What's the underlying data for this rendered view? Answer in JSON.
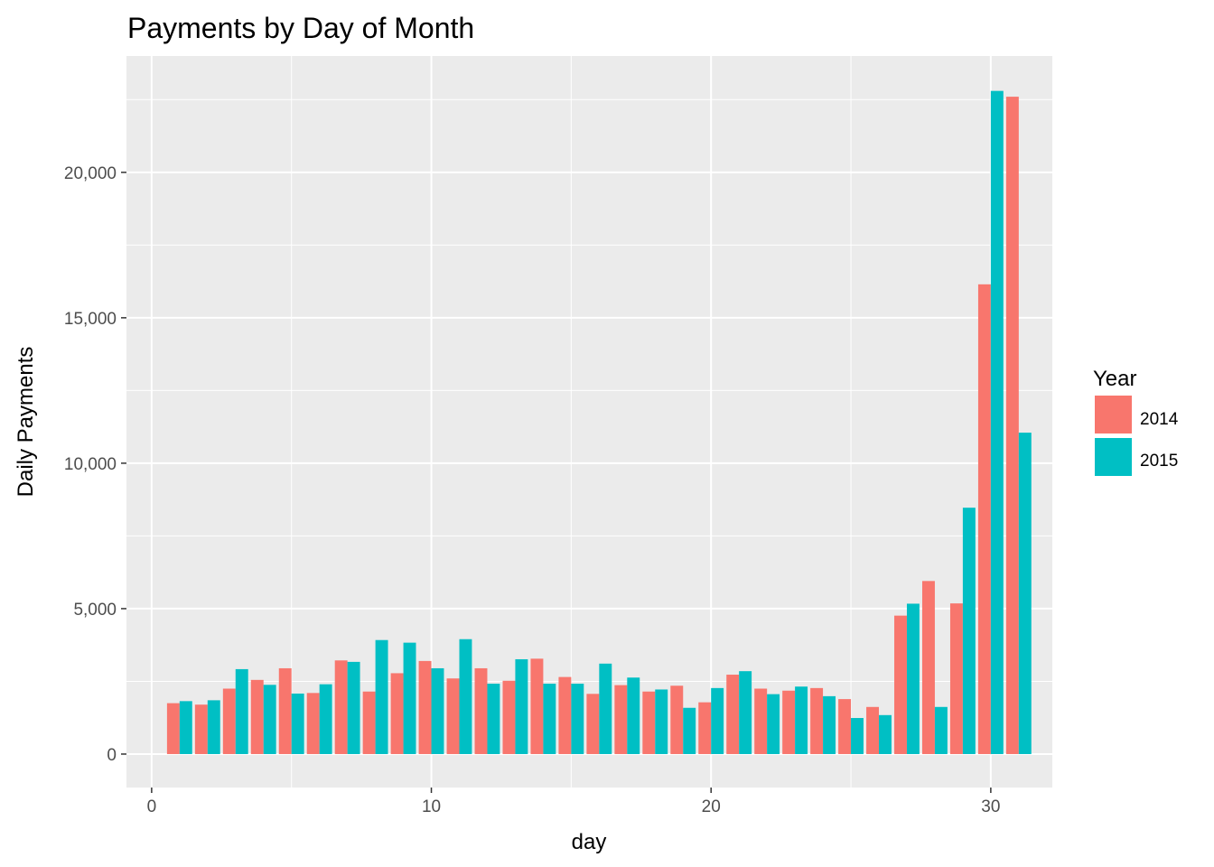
{
  "chart_data": {
    "type": "bar",
    "title": "Payments by Day of Month",
    "xlabel": "day",
    "ylabel": "Daily Payments",
    "x_ticks": [
      "0",
      "10",
      "20",
      "30"
    ],
    "y_ticks": [
      "0",
      "5,000",
      "10,000",
      "15,000",
      "20,000"
    ],
    "xlim": [
      -0.9,
      32.2
    ],
    "ylim": [
      -1150,
      24000
    ],
    "grid": true,
    "legend": {
      "title": "Year",
      "position": "right"
    },
    "categories": [
      1,
      2,
      3,
      4,
      5,
      6,
      7,
      8,
      9,
      10,
      11,
      12,
      13,
      14,
      15,
      16,
      17,
      18,
      19,
      20,
      21,
      22,
      23,
      24,
      25,
      26,
      27,
      28,
      29,
      30,
      31
    ],
    "series": [
      {
        "name": "2014",
        "color": "#F8766D",
        "values": [
          1750,
          1700,
          2250,
          2550,
          2950,
          2100,
          3220,
          2150,
          2780,
          3200,
          2600,
          2950,
          2520,
          3280,
          2650,
          2070,
          2370,
          2150,
          2350,
          1780,
          2730,
          2250,
          2180,
          2270,
          1890,
          1620,
          4760,
          5950,
          5180,
          16150,
          22600
        ]
      },
      {
        "name": "2015",
        "color": "#00BFC4",
        "values": [
          1820,
          1850,
          2920,
          2380,
          2080,
          2400,
          3170,
          3920,
          3830,
          2950,
          3950,
          2420,
          3260,
          2420,
          2420,
          3110,
          2630,
          2220,
          1590,
          2270,
          2850,
          2060,
          2320,
          1990,
          1240,
          1340,
          5170,
          1620,
          8470,
          22800,
          11050
        ]
      }
    ]
  }
}
